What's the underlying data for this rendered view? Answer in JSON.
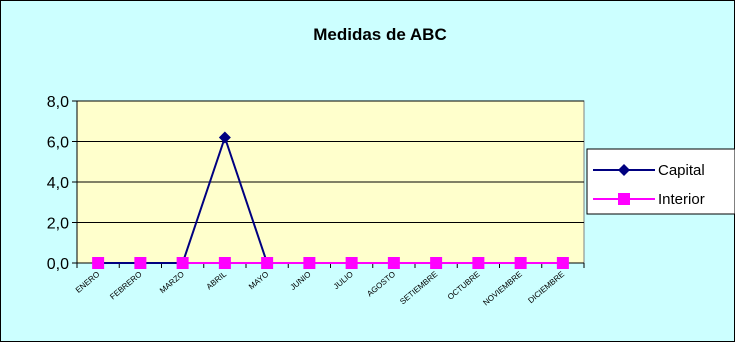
{
  "chart_data": {
    "type": "line",
    "title": "Medidas de ABC",
    "xlabel": "",
    "ylabel": "",
    "categories": [
      "ENERO",
      "FEBRERO",
      "MARZO",
      "ABRIL",
      "MAYO",
      "JUNIO",
      "JULIO",
      "AGOSTO",
      "SETIEMBRE",
      "OCTUBRE",
      "NOVIEMBRE",
      "DICIEMBRE"
    ],
    "yticks": [
      "0,0",
      "2,0",
      "4,0",
      "6,0",
      "8,0"
    ],
    "ylim": [
      0,
      8
    ],
    "grid": true,
    "legend": "right",
    "series": [
      {
        "name": "Capital",
        "values": [
          0,
          0,
          0,
          6.2,
          0,
          null,
          null,
          null,
          null,
          null,
          null,
          null
        ],
        "color": "#000080",
        "marker": "diamond"
      },
      {
        "name": "Interior",
        "values": [
          0,
          0,
          0,
          0,
          0,
          0,
          0,
          0,
          0,
          0,
          0,
          0
        ],
        "color": "#ff00ff",
        "marker": "square"
      }
    ],
    "colors": {
      "background": "#ccffff",
      "plot_area": "#ffffcc",
      "gridline": "#000000"
    }
  }
}
